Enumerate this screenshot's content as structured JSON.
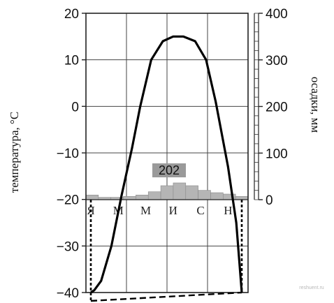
{
  "chart_data": {
    "type": "climatogram",
    "ylabel_left": "температура, °С",
    "ylabel_right": "осадки, мм",
    "temperature_axis": {
      "ylim": [
        -40,
        20
      ],
      "ticks": [
        20,
        10,
        0,
        -10,
        -20,
        -30,
        -40
      ]
    },
    "precipitation_axis": {
      "ylim": [
        0,
        400
      ],
      "ticks": [
        400,
        300,
        200,
        100,
        0
      ]
    },
    "month_labels": [
      "Я",
      "М",
      "М",
      "И",
      "С",
      "Н"
    ],
    "temperature_series": {
      "months": [
        1,
        1.25,
        1.75,
        2.5,
        3.25,
        4,
        4.6,
        5.4,
        6.25,
        7,
        7.75,
        8.6,
        9.4,
        10.1,
        11,
        11.6,
        12
      ],
      "values": [
        -40,
        -39.5,
        -37.5,
        -30,
        -19,
        -9,
        0,
        10,
        14,
        15,
        15,
        14,
        10,
        1,
        -13,
        -25,
        -40
      ]
    },
    "precipitation_series": {
      "values": [
        10,
        5,
        5,
        7,
        10,
        17,
        30,
        36,
        30,
        20,
        15,
        12,
        7
      ]
    },
    "max_precip_label": "202",
    "frost_line_labels": [
      "-40",
      "-40"
    ],
    "gridlines": true,
    "watermark": "reshuent.ru"
  }
}
